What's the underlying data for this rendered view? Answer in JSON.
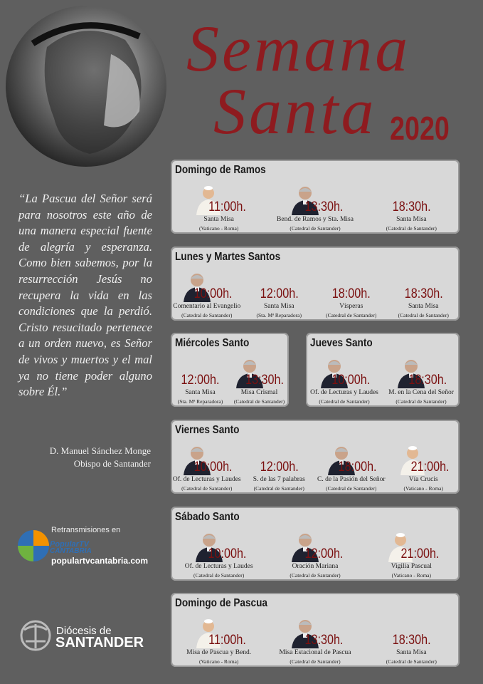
{
  "header": {
    "title_line1": "Semana",
    "title_line2": "Santa",
    "year": "2020"
  },
  "quote": {
    "text": "“La Pascua del Señor será para nosotros este año de una manera especial fuente de alegría y esperanza. Como bien sabemos, por la resurrección Jesús no recupera la vida en las condiciones que la perdió. Cristo resucitado pertenece a un orden nuevo, es Señor de vivos y muertos y el mal ya no tiene poder alguno sobre Él.”",
    "author": "D. Manuel Sánchez Monge",
    "role": "Obispo de Santander"
  },
  "broadcast": {
    "label": "Retransmisiones en",
    "logo_line1": "PopularTV",
    "logo_line2": "CANTABRIA",
    "url": "populartvcantabria.com"
  },
  "diocese": {
    "line1": "Diócesis de",
    "line2": "SANTANDER"
  },
  "days": [
    {
      "title": "Domingo de Ramos",
      "events": [
        {
          "time": "11:00h.",
          "name": "Santa Misa",
          "place": "(Vaticano - Roma)"
        },
        {
          "time": "13:30h.",
          "name": "Bend. de Ramos y Sta. Misa",
          "place": "(Catedral de Santander)"
        },
        {
          "time": "18:30h.",
          "name": "Santa Misa",
          "place": "(Catedral de Santander)"
        }
      ]
    },
    {
      "title": "Lunes y Martes Santos",
      "events": [
        {
          "time": "10:00h.",
          "name": "Comentario al Evangelio",
          "place": "(Catedral de Santander)"
        },
        {
          "time": "12:00h.",
          "name": "Santa Misa",
          "place": "(Sta. Mª Reparadora)"
        },
        {
          "time": "18:00h.",
          "name": "Vísperas",
          "place": "(Catedral de Santander)"
        },
        {
          "time": "18:30h.",
          "name": "Santa Misa",
          "place": "(Catedral de Santander)"
        }
      ]
    },
    {
      "title": "Miércoles Santo",
      "events": [
        {
          "time": "12:00h.",
          "name": "Santa Misa",
          "place": "(Sta. Mª Reparadora)"
        },
        {
          "time": "13:30h.",
          "name": "Misa Crismal",
          "place": "(Catedral de Santander)"
        }
      ]
    },
    {
      "title": "Jueves Santo",
      "events": [
        {
          "time": "10:00h.",
          "name": "Of. de Lecturas y Laudes",
          "place": "(Catedral de Santander)"
        },
        {
          "time": "18:30h.",
          "name": "M. en la Cena del Señor",
          "place": "(Catedral de Santander)"
        }
      ]
    },
    {
      "title": "Viernes Santo",
      "events": [
        {
          "time": "10:00h.",
          "name": "Of. de Lecturas y Laudes",
          "place": "(Catedral de Santander)"
        },
        {
          "time": "12:00h.",
          "name": "S. de las 7 palabras",
          "place": "(Catedral de Santander)"
        },
        {
          "time": "18:00h.",
          "name": "C. de la Pasión del Señor",
          "place": "(Catedral de Santander)"
        },
        {
          "time": "21:00h.",
          "name": "Vía Crucis",
          "place": "(Vaticano - Roma)"
        }
      ]
    },
    {
      "title": "Sábado Santo",
      "events": [
        {
          "time": "10:00h.",
          "name": "Of. de Lecturas y Laudes",
          "place": "(Catedral de Santander)"
        },
        {
          "time": "12:00h.",
          "name": "Oración Mariana",
          "place": "(Catedral de Santander)"
        },
        {
          "time": "21:00h.",
          "name": "Vigilia Pascual",
          "place": "(Vaticano - Roma)"
        }
      ]
    },
    {
      "title": "Domingo de Pascua",
      "events": [
        {
          "time": "11:00h.",
          "name": "Misa de Pascua y Bend.",
          "place": "(Vaticano - Roma)"
        },
        {
          "time": "13:30h.",
          "name": "Misa Estacional de Pascua",
          "place": "(Catedral de Santander)"
        },
        {
          "time": "18:30h.",
          "name": "Santa Misa",
          "place": "(Catedral de Santander)"
        }
      ]
    }
  ]
}
